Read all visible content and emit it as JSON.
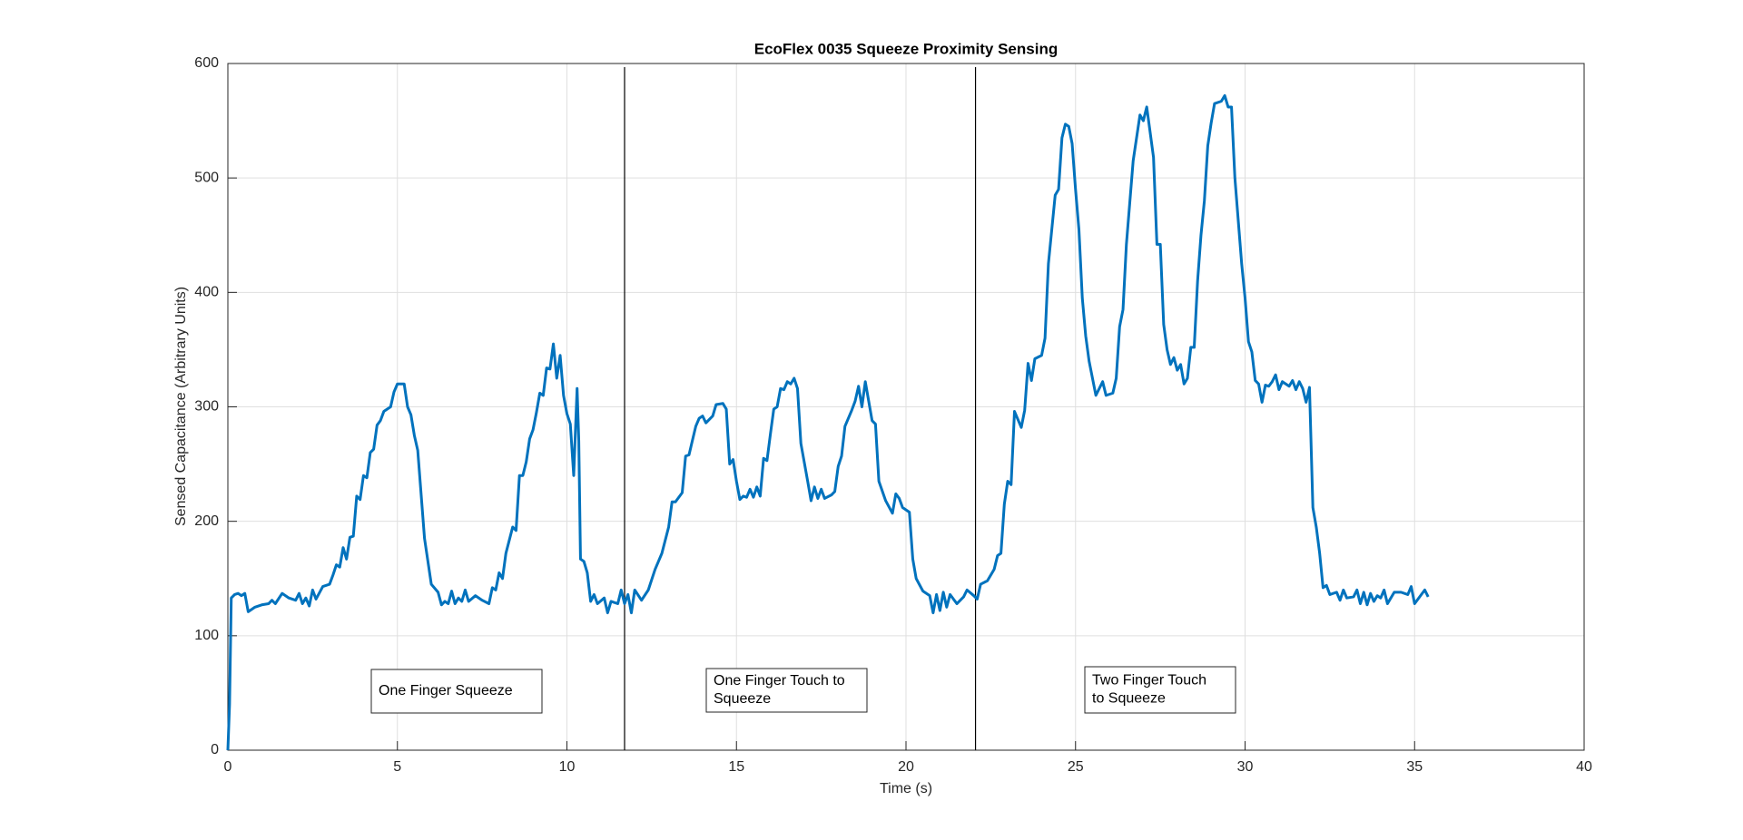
{
  "chart_data": {
    "type": "line",
    "title": "EcoFlex 0035 Squeeze Proximity Sensing",
    "x_label": "Time (s)",
    "y_label": "Sensed Capacitance (Arbitrary Units)",
    "color": "#0072bd",
    "grid": true,
    "xlim": [
      0,
      40
    ],
    "xticks": [
      0,
      5,
      10,
      15,
      20,
      25,
      30,
      35,
      40
    ],
    "ylim": [
      0,
      600
    ],
    "yticks": [
      0,
      100,
      200,
      300,
      400,
      500,
      600
    ],
    "vlines": [
      11.7,
      22.05
    ],
    "annotations": [
      {
        "lines": [
          "One Finger Squeeze"
        ]
      },
      {
        "lines": [
          "One Finger Touch to",
          "Squeeze"
        ]
      },
      {
        "lines": [
          "Two Finger Touch",
          "to Squeeze"
        ]
      }
    ],
    "x": [
      0,
      0.05,
      0.1,
      0.2,
      0.3,
      0.4,
      0.5,
      0.6,
      0.8,
      1.0,
      1.2,
      1.3,
      1.4,
      1.6,
      1.8,
      2.0,
      2.1,
      2.2,
      2.3,
      2.4,
      2.5,
      2.6,
      2.8,
      3.0,
      3.1,
      3.2,
      3.3,
      3.4,
      3.5,
      3.6,
      3.7,
      3.8,
      3.9,
      4.0,
      4.1,
      4.2,
      4.3,
      4.4,
      4.5,
      4.6,
      4.8,
      4.9,
      5.0,
      5.2,
      5.3,
      5.4,
      5.5,
      5.6,
      5.8,
      6.0,
      6.2,
      6.3,
      6.4,
      6.5,
      6.6,
      6.7,
      6.8,
      6.9,
      7.0,
      7.1,
      7.3,
      7.5,
      7.7,
      7.8,
      7.9,
      8.0,
      8.1,
      8.2,
      8.4,
      8.5,
      8.6,
      8.7,
      8.8,
      8.9,
      9.0,
      9.1,
      9.2,
      9.3,
      9.4,
      9.5,
      9.6,
      9.7,
      9.8,
      9.9,
      10.0,
      10.1,
      10.2,
      10.3,
      10.35,
      10.4,
      10.5,
      10.6,
      10.7,
      10.8,
      10.9,
      11.1,
      11.2,
      11.3,
      11.5,
      11.6,
      11.7,
      11.8,
      11.9,
      12.0,
      12.2,
      12.4,
      12.6,
      12.8,
      13.0,
      13.1,
      13.2,
      13.4,
      13.5,
      13.6,
      13.8,
      13.9,
      14.0,
      14.1,
      14.3,
      14.4,
      14.6,
      14.7,
      14.8,
      14.9,
      15.0,
      15.1,
      15.2,
      15.3,
      15.4,
      15.5,
      15.6,
      15.7,
      15.8,
      15.9,
      16.0,
      16.1,
      16.2,
      16.3,
      16.4,
      16.5,
      16.6,
      16.7,
      16.8,
      16.9,
      17.1,
      17.2,
      17.3,
      17.4,
      17.5,
      17.6,
      17.8,
      17.9,
      18.0,
      18.1,
      18.2,
      18.4,
      18.5,
      18.6,
      18.7,
      18.8,
      18.9,
      19.0,
      19.1,
      19.2,
      19.4,
      19.6,
      19.7,
      19.8,
      19.9,
      20.1,
      20.2,
      20.3,
      20.5,
      20.7,
      20.8,
      20.9,
      21.0,
      21.1,
      21.2,
      21.3,
      21.5,
      21.7,
      21.8,
      22.0,
      22.1,
      22.2,
      22.4,
      22.6,
      22.7,
      22.8,
      22.9,
      23.0,
      23.1,
      23.2,
      23.4,
      23.5,
      23.6,
      23.7,
      23.8,
      24.0,
      24.1,
      24.2,
      24.4,
      24.5,
      24.6,
      24.7,
      24.8,
      24.9,
      25.0,
      25.1,
      25.2,
      25.3,
      25.4,
      25.6,
      25.8,
      25.9,
      26.1,
      26.2,
      26.3,
      26.4,
      26.5,
      26.7,
      26.9,
      27.0,
      27.1,
      27.3,
      27.4,
      27.5,
      27.6,
      27.7,
      27.8,
      27.9,
      28.0,
      28.1,
      28.2,
      28.3,
      28.4,
      28.5,
      28.6,
      28.7,
      28.8,
      28.9,
      29.0,
      29.1,
      29.3,
      29.4,
      29.5,
      29.6,
      29.7,
      29.9,
      30.0,
      30.1,
      30.2,
      30.3,
      30.4,
      30.5,
      30.6,
      30.7,
      30.8,
      30.9,
      31.0,
      31.1,
      31.3,
      31.4,
      31.5,
      31.6,
      31.7,
      31.8,
      31.9,
      32.0,
      32.1,
      32.2,
      32.3,
      32.4,
      32.5,
      32.7,
      32.8,
      32.9,
      33.0,
      33.2,
      33.3,
      33.4,
      33.5,
      33.6,
      33.7,
      33.8,
      33.9,
      34.0,
      34.1,
      34.2,
      34.4,
      34.6,
      34.8,
      34.9,
      35.0,
      35.2,
      35.3,
      35.4
    ],
    "values": [
      0,
      40,
      133,
      136,
      137,
      135,
      137,
      121,
      125,
      127,
      128,
      131,
      128,
      137,
      133,
      131,
      137,
      128,
      133,
      126,
      140,
      132,
      143,
      145,
      153,
      162,
      160,
      177,
      167,
      186,
      187,
      222,
      219,
      240,
      238,
      260,
      263,
      284,
      288,
      296,
      300,
      313,
      320,
      320,
      300,
      293,
      275,
      262,
      185,
      145,
      138,
      127,
      130,
      128,
      139,
      128,
      133,
      130,
      140,
      130,
      135,
      131,
      128,
      142,
      140,
      155,
      150,
      172,
      195,
      192,
      240,
      240,
      252,
      272,
      280,
      295,
      312,
      310,
      334,
      333,
      355,
      325,
      345,
      310,
      294,
      285,
      240,
      316,
      270,
      167,
      165,
      155,
      130,
      136,
      128,
      133,
      120,
      130,
      128,
      140,
      128,
      136,
      120,
      140,
      131,
      140,
      158,
      172,
      195,
      217,
      217,
      225,
      257,
      258,
      283,
      290,
      292,
      286,
      292,
      302,
      303,
      298,
      250,
      254,
      235,
      219,
      222,
      221,
      228,
      221,
      230,
      222,
      255,
      253,
      276,
      298,
      300,
      316,
      315,
      322,
      320,
      325,
      316,
      268,
      235,
      218,
      230,
      220,
      228,
      220,
      223,
      226,
      248,
      257,
      283,
      297,
      305,
      318,
      300,
      322,
      305,
      288,
      285,
      235,
      218,
      207,
      224,
      220,
      212,
      208,
      167,
      150,
      139,
      135,
      120,
      136,
      122,
      138,
      125,
      136,
      128,
      134,
      140,
      135,
      132,
      145,
      148,
      158,
      170,
      172,
      215,
      235,
      232,
      296,
      282,
      297,
      338,
      323,
      342,
      345,
      360,
      425,
      485,
      490,
      535,
      547,
      545,
      530,
      490,
      455,
      395,
      362,
      340,
      310,
      322,
      310,
      312,
      325,
      370,
      385,
      442,
      515,
      555,
      550,
      562,
      518,
      442,
      442,
      372,
      350,
      337,
      343,
      332,
      337,
      320,
      325,
      352,
      352,
      410,
      450,
      480,
      528,
      548,
      565,
      567,
      572,
      562,
      562,
      500,
      425,
      395,
      357,
      348,
      323,
      320,
      304,
      319,
      318,
      322,
      328,
      315,
      322,
      318,
      323,
      315,
      322,
      316,
      304,
      317,
      212,
      195,
      172,
      142,
      144,
      136,
      138,
      131,
      140,
      133,
      134,
      140,
      128,
      138,
      127,
      137,
      130,
      135,
      133,
      140,
      128,
      138,
      138,
      136,
      143,
      128,
      136,
      140,
      134
    ]
  }
}
